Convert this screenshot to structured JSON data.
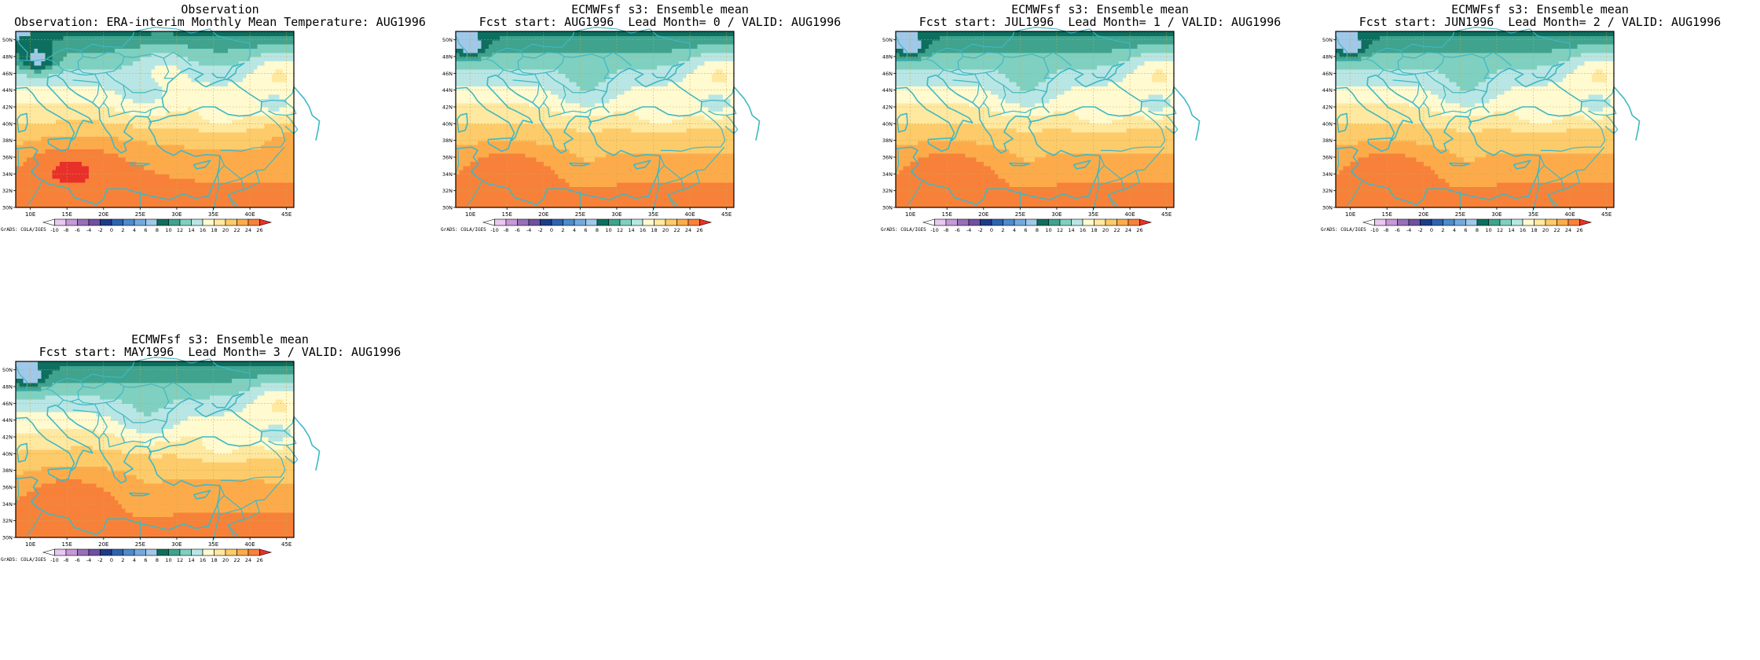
{
  "panels": [
    {
      "title1": "Observation",
      "title2": "Observation: ERA-interim Monthly Mean Temperature: AUG1996",
      "scenario": "obs"
    },
    {
      "title1": "ECMWFsf s3: Ensemble mean",
      "title2": "Fcst start: AUG1996  Lead Month= 0 / VALID: AUG1996",
      "scenario": "f0"
    },
    {
      "title1": "ECMWFsf s3: Ensemble mean",
      "title2": "Fcst start: JUL1996  Lead Month= 1 / VALID: AUG1996",
      "scenario": "f1"
    },
    {
      "title1": "ECMWFsf s3: Ensemble mean",
      "title2": "Fcst start: JUN1996  Lead Month= 2 / VALID: AUG1996",
      "scenario": "f2"
    },
    {
      "title1": "ECMWFsf s3: Ensemble mean",
      "title2": "Fcst start: MAY1996  Lead Month= 3 / VALID: AUG1996",
      "scenario": "f3"
    }
  ],
  "axes": {
    "lon_ticks": [
      "10E",
      "15E",
      "20E",
      "25E",
      "30E",
      "35E",
      "40E",
      "45E"
    ],
    "lat_ticks": [
      "30N",
      "32N",
      "34N",
      "36N",
      "38N",
      "40N",
      "42N",
      "44N",
      "46N",
      "48N",
      "50N"
    ],
    "lon_range": [
      8,
      46
    ],
    "lat_range": [
      30,
      51
    ]
  },
  "colorbar": {
    "labels": [
      "-10",
      "-8",
      "-6",
      "-4",
      "-2",
      "0",
      "2",
      "4",
      "6",
      "8",
      "10",
      "12",
      "14",
      "16",
      "18",
      "20",
      "22",
      "24",
      "26"
    ],
    "colors": [
      "#ffffff",
      "#e8c8f0",
      "#c898d8",
      "#9870b8",
      "#7050a0",
      "#1c3c88",
      "#2f62b0",
      "#4c8bcc",
      "#74aadb",
      "#a0c8e8",
      "#0d6f5f",
      "#3fa38e",
      "#7fd0c0",
      "#b8e6e4",
      "#fffad0",
      "#ffe8a0",
      "#fdcb6a",
      "#fdab4a",
      "#f8813a",
      "#e8302a"
    ]
  },
  "credit": "GrADS: COLA/IGES",
  "colors": {
    "coast": "#3fb8c4",
    "grid": "#c8a850"
  }
}
